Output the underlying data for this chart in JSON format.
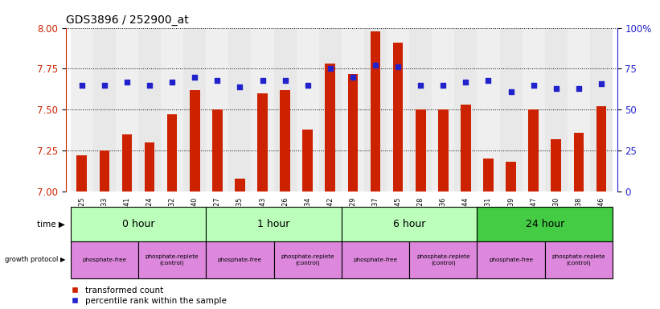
{
  "title": "GDS3896 / 252900_at",
  "samples": [
    "GSM618325",
    "GSM618333",
    "GSM618341",
    "GSM618324",
    "GSM618332",
    "GSM618340",
    "GSM618327",
    "GSM618335",
    "GSM618343",
    "GSM618326",
    "GSM618334",
    "GSM618342",
    "GSM618329",
    "GSM618337",
    "GSM618345",
    "GSM618328",
    "GSM618336",
    "GSM618344",
    "GSM618331",
    "GSM618339",
    "GSM618347",
    "GSM618330",
    "GSM618338",
    "GSM618346"
  ],
  "transformed_counts": [
    7.22,
    7.25,
    7.35,
    7.3,
    7.47,
    7.62,
    7.5,
    7.08,
    7.6,
    7.62,
    7.38,
    7.78,
    7.72,
    7.98,
    7.91,
    7.5,
    7.5,
    7.53,
    7.2,
    7.18,
    7.5,
    7.32,
    7.36,
    7.52
  ],
  "percentile_ranks": [
    65,
    65,
    67,
    65,
    67,
    70,
    68,
    64,
    68,
    68,
    65,
    75,
    70,
    77,
    76,
    65,
    65,
    67,
    68,
    61,
    65,
    63,
    63,
    66
  ],
  "ylim_left": [
    7.0,
    8.0
  ],
  "ylim_right": [
    0,
    100
  ],
  "yticks_left": [
    7.0,
    7.25,
    7.5,
    7.75,
    8.0
  ],
  "yticks_right": [
    0,
    25,
    50,
    75,
    100
  ],
  "ytick_labels_right": [
    "0",
    "25",
    "50",
    "75",
    "100%"
  ],
  "bar_color": "#cc2200",
  "dot_color": "#2222cc",
  "time_groups": [
    {
      "label": "0 hour",
      "start": 0,
      "end": 6,
      "color": "#bbffbb"
    },
    {
      "label": "1 hour",
      "start": 6,
      "end": 12,
      "color": "#bbffbb"
    },
    {
      "label": "6 hour",
      "start": 12,
      "end": 18,
      "color": "#bbffbb"
    },
    {
      "label": "24 hour",
      "start": 18,
      "end": 24,
      "color": "#44cc44"
    }
  ],
  "prot_groups": [
    {
      "label": "phosphate-free",
      "start": 0,
      "end": 3
    },
    {
      "label": "phosphate-replete\n(control)",
      "start": 3,
      "end": 6
    },
    {
      "label": "phosphate-free",
      "start": 6,
      "end": 9
    },
    {
      "label": "phosphate-replete\n(control)",
      "start": 9,
      "end": 12
    },
    {
      "label": "phosphate-free",
      "start": 12,
      "end": 15
    },
    {
      "label": "phosphate-replete\n(control)",
      "start": 15,
      "end": 18
    },
    {
      "label": "phosphate-free",
      "start": 18,
      "end": 21
    },
    {
      "label": "phosphate-replete\n(control)",
      "start": 21,
      "end": 24
    }
  ],
  "protocol_color": "#dd88dd",
  "legend_labels": [
    "transformed count",
    "percentile rank within the sample"
  ],
  "legend_colors": [
    "#cc2200",
    "#2222cc"
  ]
}
